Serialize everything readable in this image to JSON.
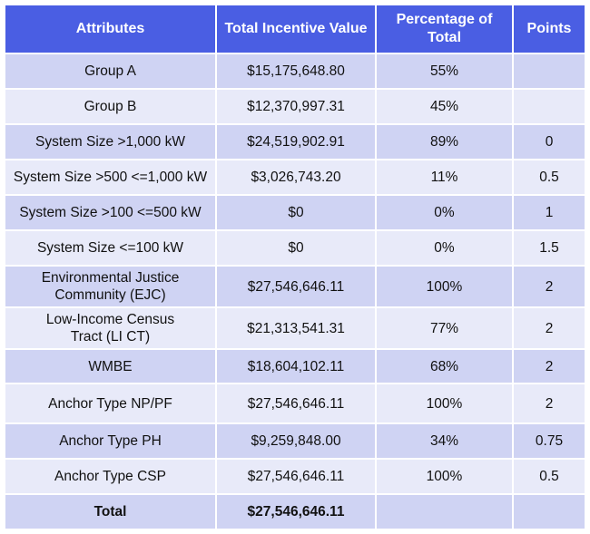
{
  "table": {
    "headers": [
      "Attributes",
      "Total Incentive Value",
      "Percentage of Total",
      "Points"
    ],
    "rows": [
      {
        "attribute": "Group A",
        "value": "$15,175,648.80",
        "percentage": "55%",
        "points": ""
      },
      {
        "attribute": "Group B",
        "value": "$12,370,997.31",
        "percentage": "45%",
        "points": ""
      },
      {
        "attribute": "System Size >1,000 kW",
        "value": "$24,519,902.91",
        "percentage": "89%",
        "points": "0"
      },
      {
        "attribute": "System Size >500 <=1,000 kW",
        "value": "$3,026,743.20",
        "percentage": "11%",
        "points": "0.5"
      },
      {
        "attribute": "System Size >100 <=500 kW",
        "value": "$0",
        "percentage": "0%",
        "points": "1"
      },
      {
        "attribute": "System Size <=100 kW",
        "value": "$0",
        "percentage": "0%",
        "points": "1.5"
      },
      {
        "attribute": "Environmental Justice Community (EJC)",
        "value": "$27,546,646.11",
        "percentage": "100%",
        "points": "2"
      },
      {
        "attribute": "Low-Income Census Tract (LI CT)",
        "value": "$21,313,541.31",
        "percentage": "77%",
        "points": "2"
      },
      {
        "attribute": "WMBE",
        "value": "$18,604,102.11",
        "percentage": "68%",
        "points": "2"
      },
      {
        "attribute": "Anchor Type NP/PF",
        "value": "$27,546,646.11",
        "percentage": "100%",
        "points": "2"
      },
      {
        "attribute": "Anchor Type PH",
        "value": "$9,259,848.00",
        "percentage": "34%",
        "points": "0.75"
      },
      {
        "attribute": "Anchor Type CSP",
        "value": "$27,546,646.11",
        "percentage": "100%",
        "points": "0.5"
      }
    ],
    "total": {
      "attribute": "Total",
      "value": "$27,546,646.11",
      "percentage": "",
      "points": ""
    }
  }
}
